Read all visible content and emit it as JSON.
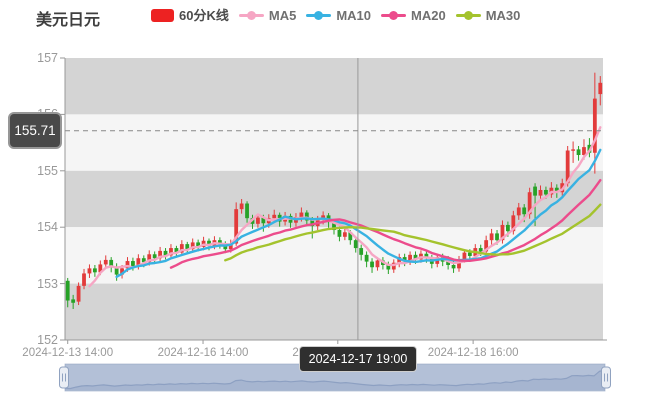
{
  "title": "美元日元",
  "legend": {
    "position": "top",
    "items": [
      {
        "label": "60分K线",
        "marker": "rect",
        "color": "#ed2222"
      },
      {
        "label": "MA5",
        "marker": "line-dot",
        "color": "#f6a6c4"
      },
      {
        "label": "MA10",
        "marker": "line-dot",
        "color": "#38b2e2"
      },
      {
        "label": "MA20",
        "marker": "line-dot",
        "color": "#ec4c8c"
      },
      {
        "label": "MA30",
        "marker": "line-dot",
        "color": "#a4c32d"
      }
    ]
  },
  "y_axis": {
    "min": 152,
    "max": 157,
    "tick_step": 1,
    "labels": [
      "157",
      "156",
      "155",
      "154",
      "153",
      "152"
    ]
  },
  "x_axis": {
    "ticks": [
      {
        "label": "2024-12-13 14:00",
        "index": 0
      },
      {
        "label": "2024-12-16 14:00",
        "index": 24.9
      },
      {
        "label": "2024-12-17 15:00",
        "index": 49.7
      },
      {
        "label": "2024-12-18 16:00",
        "index": 74.6
      }
    ]
  },
  "crosshair": {
    "index": 53.4,
    "price": 155.71,
    "price_label": "155.71",
    "time_label": "2024-12-17 19:00"
  },
  "datazoom": {
    "track_color": "#b3c0d7",
    "fill_color": "#a6b5d0",
    "line_color": "#8da0c2",
    "handle_fill": "#e9edf4",
    "handle_border": "#90a2c0"
  },
  "chart_data": {
    "type": "candlestick",
    "symbol": "美元日元",
    "series_name": "60分K线",
    "grid": "alternating-bands",
    "band_colors": {
      "dark": "#d4d4d4",
      "light": "#f5f5f5"
    },
    "colors": {
      "up": "#e23b3b",
      "down": "#27a227"
    },
    "ylim": [
      152,
      157
    ],
    "ohlc_format": "[open, close, low, high]",
    "candles": [
      [
        153.05,
        152.7,
        152.58,
        153.1
      ],
      [
        152.72,
        152.66,
        152.55,
        152.8
      ],
      [
        152.68,
        152.96,
        152.62,
        153.02
      ],
      [
        152.96,
        153.18,
        152.9,
        153.26
      ],
      [
        153.18,
        153.27,
        153.1,
        153.34
      ],
      [
        153.27,
        153.2,
        153.12,
        153.33
      ],
      [
        153.2,
        153.34,
        153.15,
        153.41
      ],
      [
        153.34,
        153.42,
        153.28,
        153.5
      ],
      [
        153.42,
        153.3,
        153.2,
        153.47
      ],
      [
        153.3,
        153.16,
        153.05,
        153.36
      ],
      [
        153.16,
        153.27,
        153.09,
        153.33
      ],
      [
        153.27,
        153.4,
        153.21,
        153.47
      ],
      [
        153.4,
        153.31,
        153.23,
        153.46
      ],
      [
        153.31,
        153.45,
        153.25,
        153.52
      ],
      [
        153.45,
        153.38,
        153.29,
        153.5
      ],
      [
        153.38,
        153.52,
        153.32,
        153.59
      ],
      [
        153.52,
        153.45,
        153.37,
        153.57
      ],
      [
        153.45,
        153.58,
        153.39,
        153.65
      ],
      [
        153.58,
        153.5,
        153.43,
        153.63
      ],
      [
        153.5,
        153.63,
        153.45,
        153.7
      ],
      [
        153.63,
        153.55,
        153.47,
        153.67
      ],
      [
        153.55,
        153.7,
        153.49,
        153.77
      ],
      [
        153.7,
        153.61,
        153.53,
        153.74
      ],
      [
        153.61,
        153.73,
        153.55,
        153.8
      ],
      [
        153.73,
        153.65,
        153.57,
        153.78
      ],
      [
        153.65,
        153.76,
        153.59,
        153.83
      ],
      [
        153.76,
        153.67,
        153.59,
        153.8
      ],
      [
        153.67,
        153.77,
        153.61,
        153.84
      ],
      [
        153.77,
        153.69,
        153.62,
        153.82
      ],
      [
        153.69,
        153.61,
        153.54,
        153.75
      ],
      [
        153.61,
        153.71,
        153.55,
        153.78
      ],
      [
        153.71,
        154.32,
        153.67,
        154.44
      ],
      [
        154.32,
        154.42,
        154.24,
        154.5
      ],
      [
        154.42,
        154.16,
        154.08,
        154.46
      ],
      [
        154.16,
        154.06,
        153.97,
        154.22
      ],
      [
        154.06,
        154.17,
        153.99,
        154.24
      ],
      [
        154.17,
        154.07,
        153.92,
        154.22
      ],
      [
        154.07,
        154.16,
        153.99,
        154.23
      ],
      [
        154.16,
        154.22,
        154.08,
        154.31
      ],
      [
        154.22,
        154.1,
        154.01,
        154.26
      ],
      [
        154.1,
        154.2,
        154.03,
        154.27
      ],
      [
        154.2,
        154.08,
        153.99,
        154.24
      ],
      [
        154.08,
        154.18,
        154.01,
        154.25
      ],
      [
        154.18,
        154.26,
        154.1,
        154.35
      ],
      [
        154.26,
        154.12,
        154.03,
        154.3
      ],
      [
        154.12,
        154.02,
        153.8,
        154.18
      ],
      [
        154.02,
        154.13,
        153.95,
        154.2
      ],
      [
        154.13,
        154.21,
        154.05,
        154.28
      ],
      [
        154.21,
        154.09,
        153.99,
        154.25
      ],
      [
        154.09,
        153.95,
        153.87,
        154.13
      ],
      [
        153.95,
        153.83,
        153.75,
        154.01
      ],
      [
        153.83,
        153.91,
        153.77,
        153.97
      ],
      [
        153.91,
        153.77,
        153.69,
        153.95
      ],
      [
        153.77,
        153.63,
        153.55,
        153.83
      ],
      [
        153.63,
        153.51,
        153.41,
        153.69
      ],
      [
        153.51,
        153.39,
        153.29,
        153.57
      ],
      [
        153.39,
        153.29,
        153.19,
        153.45
      ],
      [
        153.29,
        153.41,
        153.23,
        153.47
      ],
      [
        153.41,
        153.33,
        153.25,
        153.47
      ],
      [
        153.33,
        153.25,
        153.17,
        153.39
      ],
      [
        153.25,
        153.37,
        153.19,
        153.43
      ],
      [
        153.37,
        153.47,
        153.29,
        153.53
      ],
      [
        153.47,
        153.39,
        153.31,
        153.53
      ],
      [
        153.39,
        153.51,
        153.33,
        153.57
      ],
      [
        153.51,
        153.43,
        153.35,
        153.57
      ],
      [
        153.43,
        153.53,
        153.37,
        153.59
      ],
      [
        153.53,
        153.45,
        153.37,
        153.59
      ],
      [
        153.45,
        153.35,
        153.27,
        153.51
      ],
      [
        153.35,
        153.47,
        153.29,
        153.53
      ],
      [
        153.47,
        153.39,
        153.31,
        153.53
      ],
      [
        153.39,
        153.33,
        153.25,
        153.49
      ],
      [
        153.33,
        153.27,
        153.19,
        153.41
      ],
      [
        153.27,
        153.43,
        153.21,
        153.49
      ],
      [
        153.43,
        153.55,
        153.37,
        153.61
      ],
      [
        153.55,
        153.49,
        153.41,
        153.61
      ],
      [
        153.49,
        153.63,
        153.43,
        153.7
      ],
      [
        153.63,
        153.57,
        153.49,
        153.69
      ],
      [
        153.57,
        153.77,
        153.51,
        153.85
      ],
      [
        153.77,
        153.89,
        153.69,
        153.97
      ],
      [
        153.89,
        153.77,
        153.69,
        153.95
      ],
      [
        153.77,
        154.04,
        153.71,
        154.12
      ],
      [
        154.04,
        153.93,
        153.83,
        154.1
      ],
      [
        153.93,
        154.21,
        153.87,
        154.29
      ],
      [
        154.21,
        154.35,
        154.13,
        154.43
      ],
      [
        154.35,
        154.23,
        154.09,
        154.41
      ],
      [
        154.23,
        154.62,
        154.15,
        154.7
      ],
      [
        154.72,
        154.56,
        154.02,
        154.78
      ],
      [
        154.56,
        154.66,
        154.48,
        154.74
      ],
      [
        154.66,
        154.58,
        154.5,
        154.72
      ],
      [
        154.58,
        154.7,
        154.52,
        154.8
      ],
      [
        154.7,
        154.62,
        154.52,
        154.76
      ],
      [
        154.62,
        154.78,
        154.56,
        154.86
      ],
      [
        154.78,
        155.36,
        154.72,
        155.44
      ],
      [
        155.36,
        155.38,
        155.14,
        155.52
      ],
      [
        155.38,
        155.28,
        155.18,
        155.44
      ],
      [
        155.28,
        155.42,
        155.2,
        155.56
      ],
      [
        155.46,
        155.32,
        155.24,
        155.58
      ],
      [
        155.32,
        156.28,
        154.95,
        156.74
      ],
      [
        156.36,
        156.56,
        156.16,
        156.68
      ]
    ],
    "overlays": [
      {
        "name": "MA5",
        "period": 5,
        "color": "#f6a6c4"
      },
      {
        "name": "MA10",
        "period": 10,
        "color": "#38b2e2"
      },
      {
        "name": "MA20",
        "period": 20,
        "color": "#ec4c8c"
      },
      {
        "name": "MA30",
        "period": 30,
        "color": "#a4c32d"
      }
    ]
  }
}
